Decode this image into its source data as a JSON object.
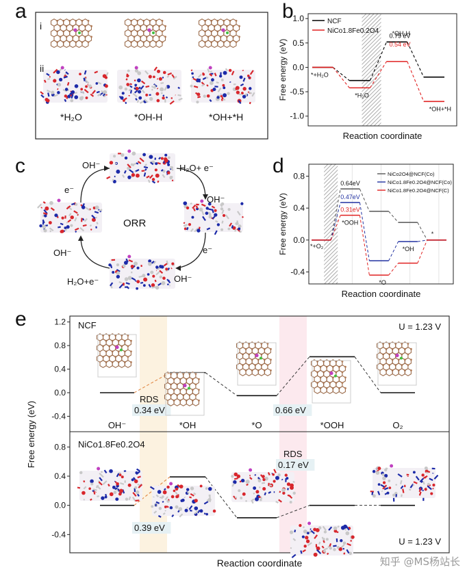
{
  "panels": {
    "a": {
      "letter": "a",
      "row_i": "i",
      "row_ii": "ii",
      "labels": [
        "*H₂O",
        "*OH-H",
        "*OH+*H"
      ]
    },
    "c": {
      "letter": "c",
      "center": "ORR",
      "labels": [
        "OH⁻",
        "H₂O+ e⁻",
        "OH⁻",
        "e⁻",
        "OH⁻",
        "H₂O+e⁻",
        "OH⁻",
        "e⁻"
      ]
    },
    "e_watermark": "知乎 @MS杨站长"
  },
  "chart_data": [
    {
      "id": "b",
      "letter": "b",
      "type": "line",
      "ylabel": "Free energy (eV)",
      "xlabel": "Reaction coordinate",
      "ylim": [
        -1.2,
        1.1
      ],
      "yticks": [
        -1.0,
        -0.5,
        0.0,
        0.5,
        1.0
      ],
      "ytick_labels": [
        "-1.0",
        "-0.5",
        "0.0",
        "0.5",
        "1.0"
      ],
      "legend_position": "top-left",
      "series": [
        {
          "name": "NCF",
          "color": "#000000",
          "values": [
            0.0,
            -0.27,
            0.52,
            -0.2
          ]
        },
        {
          "name": "NiCo1.8Fe0.2O4",
          "color": "#e02020",
          "values": [
            0.0,
            -0.42,
            0.12,
            -0.7
          ]
        }
      ],
      "state_labels": [
        "*+H₂O",
        "*H₂O",
        "*OH-H",
        "*OH+*H"
      ],
      "annotations": [
        {
          "text": "0.79 eV",
          "color": "#000000"
        },
        {
          "text": "0.54 eV",
          "color": "#e02020"
        }
      ],
      "hatched_step": 2
    },
    {
      "id": "d",
      "letter": "d",
      "type": "line",
      "ylabel": "Free energy (eV)",
      "xlabel": "Reaction coordinate",
      "ylim": [
        -0.55,
        0.95
      ],
      "yticks": [
        -0.4,
        0.0,
        0.4,
        0.8
      ],
      "ytick_labels": [
        "-0.4",
        "0.0",
        "0.4",
        "0.8"
      ],
      "legend_position": "top-right",
      "series": [
        {
          "name": "NiCo2O4@NCF(Co)",
          "color": "#555555",
          "values": [
            0.0,
            0.64,
            0.36,
            0.22,
            0.0
          ]
        },
        {
          "name": "NiCo1.8Fe0.2O4@NCF(Co)",
          "color": "#2030a0",
          "values": [
            0.0,
            0.47,
            -0.26,
            -0.02,
            0.0
          ]
        },
        {
          "name": "NiCo1.8Fe0.2O4@NCF(C)",
          "color": "#e02020",
          "values": [
            0.0,
            0.31,
            -0.44,
            -0.29,
            0.0
          ]
        }
      ],
      "state_labels": [
        "*+O₂",
        "*OOH",
        "*O",
        "*OH",
        "*"
      ],
      "annotations": [
        {
          "text": "0.64eV",
          "color": "#111111"
        },
        {
          "text": "0.47eV",
          "color": "#2030a0"
        },
        {
          "text": "0.31eV",
          "color": "#e02020"
        }
      ],
      "hatched_step": 1
    },
    {
      "id": "e",
      "letter": "e",
      "type": "line",
      "xlabel": "Reaction coordinate",
      "ylabel": "Free energy (eV)",
      "subplots": [
        {
          "name": "NCF",
          "condition": "U = 1.23 V",
          "ylim": [
            -0.65,
            1.3
          ],
          "yticks": [
            -0.4,
            0.0,
            0.4,
            0.8,
            1.2
          ],
          "ytick_labels": [
            "-0.4",
            "0.0",
            "0.4",
            "0.8",
            "1.2"
          ],
          "values": [
            0.0,
            0.34,
            -0.05,
            0.61,
            0.0
          ],
          "states": [
            "OH⁻",
            "*OH",
            "*O",
            "*OOH",
            "O₂"
          ],
          "annotations": [
            {
              "text": "RDS",
              "boxed": false
            },
            {
              "text": "0.34 eV",
              "boxed": true
            },
            {
              "text": "0.66 eV",
              "boxed": true
            }
          ]
        },
        {
          "name": "NiCo1.8Fe0.2O4",
          "condition": "U = 1.23 V",
          "ylim": [
            -0.65,
            1.0
          ],
          "yticks": [
            -0.4,
            0.0,
            0.4,
            0.8
          ],
          "ytick_labels": [
            "-0.4",
            "0.0",
            "0.4",
            "0.8"
          ],
          "values": [
            0.0,
            0.39,
            -0.17,
            0.0,
            0.0
          ],
          "annotations": [
            {
              "text": "RDS",
              "boxed": false
            },
            {
              "text": "0.17 eV",
              "boxed": true
            },
            {
              "text": "0.39 eV",
              "boxed": true
            }
          ]
        }
      ]
    }
  ]
}
